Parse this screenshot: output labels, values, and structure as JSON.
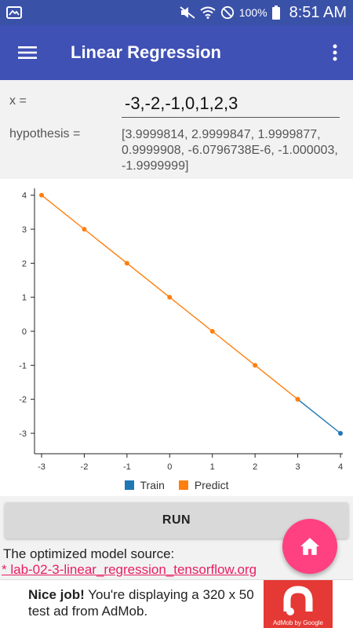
{
  "status_bar": {
    "battery_pct": "100%",
    "time": "8:51 AM"
  },
  "app_bar": {
    "title": "Linear Regression"
  },
  "form": {
    "x_label": "x =",
    "x_value": "-3,-2,-1,0,1,2,3",
    "hypothesis_label": "hypothesis =",
    "hypothesis_value": "[3.9999814, 2.9999847, 1.9999877, 0.9999908, -6.0796738E-6, -1.000003, -1.9999999]"
  },
  "chart_data": {
    "type": "line",
    "x_ticks": [
      "-3",
      "-2",
      "-1",
      "0",
      "1",
      "2",
      "3",
      "4"
    ],
    "y_ticks": [
      "-3",
      "-2",
      "-1",
      "0",
      "1",
      "2",
      "3",
      "4"
    ],
    "xlim": [
      -3,
      4
    ],
    "ylim": [
      -3.6,
      4.2
    ],
    "series": [
      {
        "name": "Train",
        "color": "#1f77b4",
        "x": [
          3,
          4
        ],
        "y": [
          -2,
          -3
        ]
      },
      {
        "name": "Predict",
        "color": "#ff7f0e",
        "x": [
          -3,
          -2,
          -1,
          0,
          1,
          2,
          3
        ],
        "y": [
          4,
          3,
          2,
          1,
          0,
          -1,
          -2
        ]
      }
    ],
    "legend": "bottom-center"
  },
  "actions": {
    "run_label": "RUN"
  },
  "source": {
    "label": "The optimized model source:",
    "link_text": "* lab-02-3-linear_regression_tensorflow.org"
  },
  "ad": {
    "strong": "Nice job!",
    "text": " You're displaying a 320 x 50 test ad from AdMob.",
    "caption": "AdMob by Google"
  },
  "colors": {
    "primary": "#3f51b5",
    "status_bar": "#3a51a8",
    "accent": "#ff4081",
    "link": "#e91e63"
  }
}
